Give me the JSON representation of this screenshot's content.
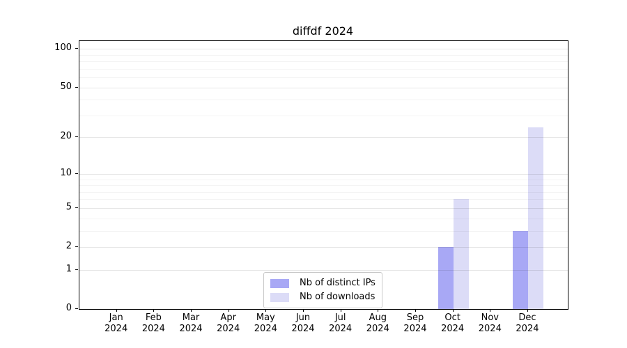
{
  "chart_data": {
    "type": "bar",
    "title": "diffdf 2024",
    "categories": [
      "Jan",
      "Feb",
      "Mar",
      "Apr",
      "May",
      "Jun",
      "Jul",
      "Aug",
      "Sep",
      "Oct",
      "Nov",
      "Dec"
    ],
    "category_year": "2024",
    "series": [
      {
        "name": "Nb of distinct IPs",
        "color": "#a8a8f5",
        "values": [
          0,
          0,
          0,
          0,
          0,
          0,
          0,
          0,
          0,
          2,
          0,
          3
        ]
      },
      {
        "name": "Nb of downloads",
        "color": "#dcdcf7",
        "values": [
          0,
          0,
          0,
          0,
          0,
          0,
          0,
          0,
          0,
          6,
          0,
          24
        ]
      }
    ],
    "yscale": "log1p",
    "yticks": [
      0,
      1,
      2,
      5,
      10,
      20,
      50,
      100
    ],
    "yticks_minor": [
      3,
      4,
      6,
      7,
      8,
      9,
      30,
      40,
      60,
      70,
      80,
      90
    ],
    "ylim": [
      0,
      115
    ],
    "grid": true,
    "legend_position": "lower center",
    "colors": {
      "spine": "#000000",
      "grid_major": "#e6e6e6",
      "grid_minor": "#f3f3f3",
      "background": "#ffffff"
    }
  }
}
